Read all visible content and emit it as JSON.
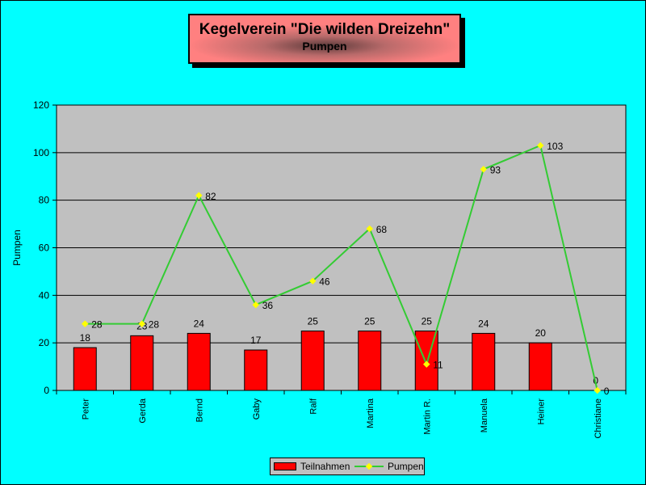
{
  "title": "Kegelverein \"Die wilden Dreizehn\"",
  "subtitle": "Pumpen",
  "colors": {
    "background": "#00ffff",
    "plot_area": "#c0c0c0",
    "bars": "#ff0000",
    "line": "#33cc33",
    "markers": "#ffff00"
  },
  "chart_data": {
    "type": "bar",
    "title": "Kegelverein \"Die wilden Dreizehn\"",
    "subtitle": "Pumpen",
    "xlabel": "",
    "ylabel": "Pumpen",
    "ylim": [
      0,
      120
    ],
    "yticks": [
      0,
      20,
      40,
      60,
      80,
      100,
      120
    ],
    "grid": true,
    "legend": "bottom",
    "categories": [
      "Peter",
      "Gerda",
      "Bernd",
      "Gaby",
      "Ralf",
      "Martina",
      "Martin R.",
      "Manuela",
      "Heiner",
      "Christiane"
    ],
    "series": [
      {
        "name": "Teilnahmen",
        "type": "bar",
        "values": [
          18,
          23,
          24,
          17,
          25,
          25,
          25,
          24,
          20,
          0
        ]
      },
      {
        "name": "Pumpen",
        "type": "line",
        "values": [
          28,
          28,
          82,
          36,
          46,
          68,
          11,
          93,
          103,
          0
        ]
      }
    ]
  }
}
